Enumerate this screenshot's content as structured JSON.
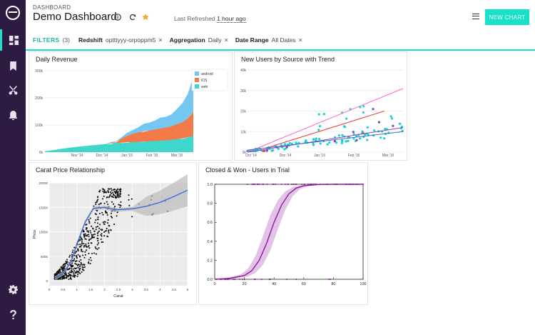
{
  "header": {
    "breadcrumb": "DASHBOARD",
    "title": "Demo Dashboard",
    "last_refreshed_prefix": "Last Refreshed",
    "last_refreshed_value": "1 hour ago",
    "new_chart_label": "NEW CHART"
  },
  "filters": {
    "label": "FILTERS",
    "count": "(3)",
    "items": [
      {
        "key": "Redshift",
        "value": "optttyyy-orpoppm5"
      },
      {
        "key": "Aggregation",
        "value": "Daily"
      },
      {
        "key": "Date Range",
        "value": "All Dates"
      }
    ],
    "remove_glyph": "×"
  },
  "icons": {
    "sidebar": [
      "dashboard-icon",
      "bookmark-icon",
      "scissors-icon",
      "bell-icon",
      "gear-icon",
      "help-icon"
    ],
    "accent_color": "#18e0c9",
    "sidebar_color": "#2e1b41"
  },
  "chart_data": [
    {
      "type": "area",
      "title": "Daily Revenue",
      "x_ticks": [
        "Nov '14",
        "Dec '14",
        "Jan '15",
        "Feb '15",
        "Mar '15"
      ],
      "y_ticks": [
        "0k",
        "100k",
        "200k",
        "300k"
      ],
      "ylim": [
        0,
        300000
      ],
      "legend": [
        "android",
        "iOS",
        "web"
      ],
      "legend_position": "top-right",
      "colors": [
        "#74c7f0",
        "#f47a4a",
        "#3fd6cc"
      ],
      "x": [
        0,
        1,
        2,
        3,
        4,
        5,
        6,
        7,
        8,
        9,
        10,
        11,
        12,
        13,
        14,
        15,
        16,
        17,
        18,
        19,
        20,
        21,
        22,
        23,
        24,
        25,
        26,
        27
      ],
      "series": [
        {
          "name": "web",
          "values": [
            3000,
            6000,
            9000,
            12000,
            15000,
            18000,
            20000,
            22000,
            24000,
            26000,
            28000,
            30000,
            32000,
            34000,
            35000,
            36000,
            37000,
            38000,
            39000,
            40000,
            41000,
            42000,
            43000,
            45000,
            48000,
            50000,
            55000,
            60000
          ]
        },
        {
          "name": "iOS",
          "values": [
            0,
            0,
            0,
            0,
            0,
            0,
            0,
            0,
            0,
            0,
            0,
            0,
            2000,
            5000,
            15000,
            25000,
            30000,
            35000,
            38000,
            40000,
            42000,
            45000,
            48000,
            50000,
            55000,
            60000,
            70000,
            90000
          ]
        },
        {
          "name": "android",
          "values": [
            0,
            0,
            0,
            0,
            0,
            0,
            0,
            0,
            0,
            0,
            0,
            0,
            1000,
            3000,
            8000,
            12000,
            15000,
            20000,
            25000,
            28000,
            32000,
            38000,
            42000,
            45000,
            55000,
            70000,
            90000,
            130000
          ]
        }
      ]
    },
    {
      "type": "scatter",
      "title": "New Users by Source with Trend",
      "x_ticks": [
        "Oct '14",
        "Dec '14",
        "Jan '15",
        "Feb '15",
        "Mar '15"
      ],
      "y_ticks": [
        "0k",
        "10k",
        "20k",
        "30k",
        "40k"
      ],
      "ylim": [
        0,
        40000
      ],
      "colors": [
        "#18d3d3",
        "#8e3fc0",
        "#e63f6a",
        "#e06020"
      ],
      "trends": [
        {
          "color": "#ff66cc",
          "from": [
            0,
            0
          ],
          "to": [
            1,
            31000
          ]
        },
        {
          "color": "#8e3fc0",
          "from": [
            0,
            0
          ],
          "to": [
            1,
            12000
          ]
        },
        {
          "color": "#e63f3f",
          "from": [
            0.12,
            2000
          ],
          "to": [
            0.88,
            20000
          ]
        },
        {
          "color": "#3f6fc0",
          "from": [
            0,
            1000
          ],
          "to": [
            1,
            10000
          ]
        }
      ]
    },
    {
      "type": "scatter",
      "title": "Carat Price Relationship",
      "xlabel": "Carat",
      "ylabel": "Price",
      "x_ticks": [
        "0",
        "0.5",
        "1",
        "1.5",
        "2",
        "2.5",
        "3",
        "3.5",
        "4",
        "4.5",
        "5"
      ],
      "y_ticks": [
        "0",
        "5000",
        "10000",
        "15000",
        "20000"
      ],
      "xlim": [
        0,
        5
      ],
      "ylim": [
        -1000,
        20000
      ],
      "fit_curve": [
        [
          0.2,
          500
        ],
        [
          0.5,
          1500
        ],
        [
          0.8,
          4000
        ],
        [
          1.0,
          7500
        ],
        [
          1.3,
          12000
        ],
        [
          1.6,
          14800
        ],
        [
          2.0,
          15000
        ],
        [
          2.4,
          14500
        ],
        [
          3.0,
          14700
        ],
        [
          3.5,
          15200
        ],
        [
          4.0,
          16000
        ],
        [
          4.5,
          17200
        ],
        [
          5.0,
          18500
        ]
      ]
    },
    {
      "type": "line",
      "title": "Closed & Won - Users in Trial",
      "x_ticks": [
        "0",
        "20",
        "40",
        "60",
        "80",
        "100"
      ],
      "y_ticks": [
        "0.0",
        "0.2",
        "0.4",
        "0.6",
        "0.8",
        "1.0"
      ],
      "xlim": [
        0,
        100
      ],
      "ylim": [
        0,
        1
      ],
      "color": "#8e1a9e",
      "curve": [
        [
          0,
          0.0
        ],
        [
          10,
          0.01
        ],
        [
          20,
          0.04
        ],
        [
          25,
          0.09
        ],
        [
          30,
          0.2
        ],
        [
          35,
          0.38
        ],
        [
          40,
          0.6
        ],
        [
          45,
          0.78
        ],
        [
          50,
          0.9
        ],
        [
          55,
          0.96
        ],
        [
          60,
          0.985
        ],
        [
          70,
          0.998
        ],
        [
          80,
          1.0
        ],
        [
          100,
          1.0
        ]
      ]
    }
  ]
}
